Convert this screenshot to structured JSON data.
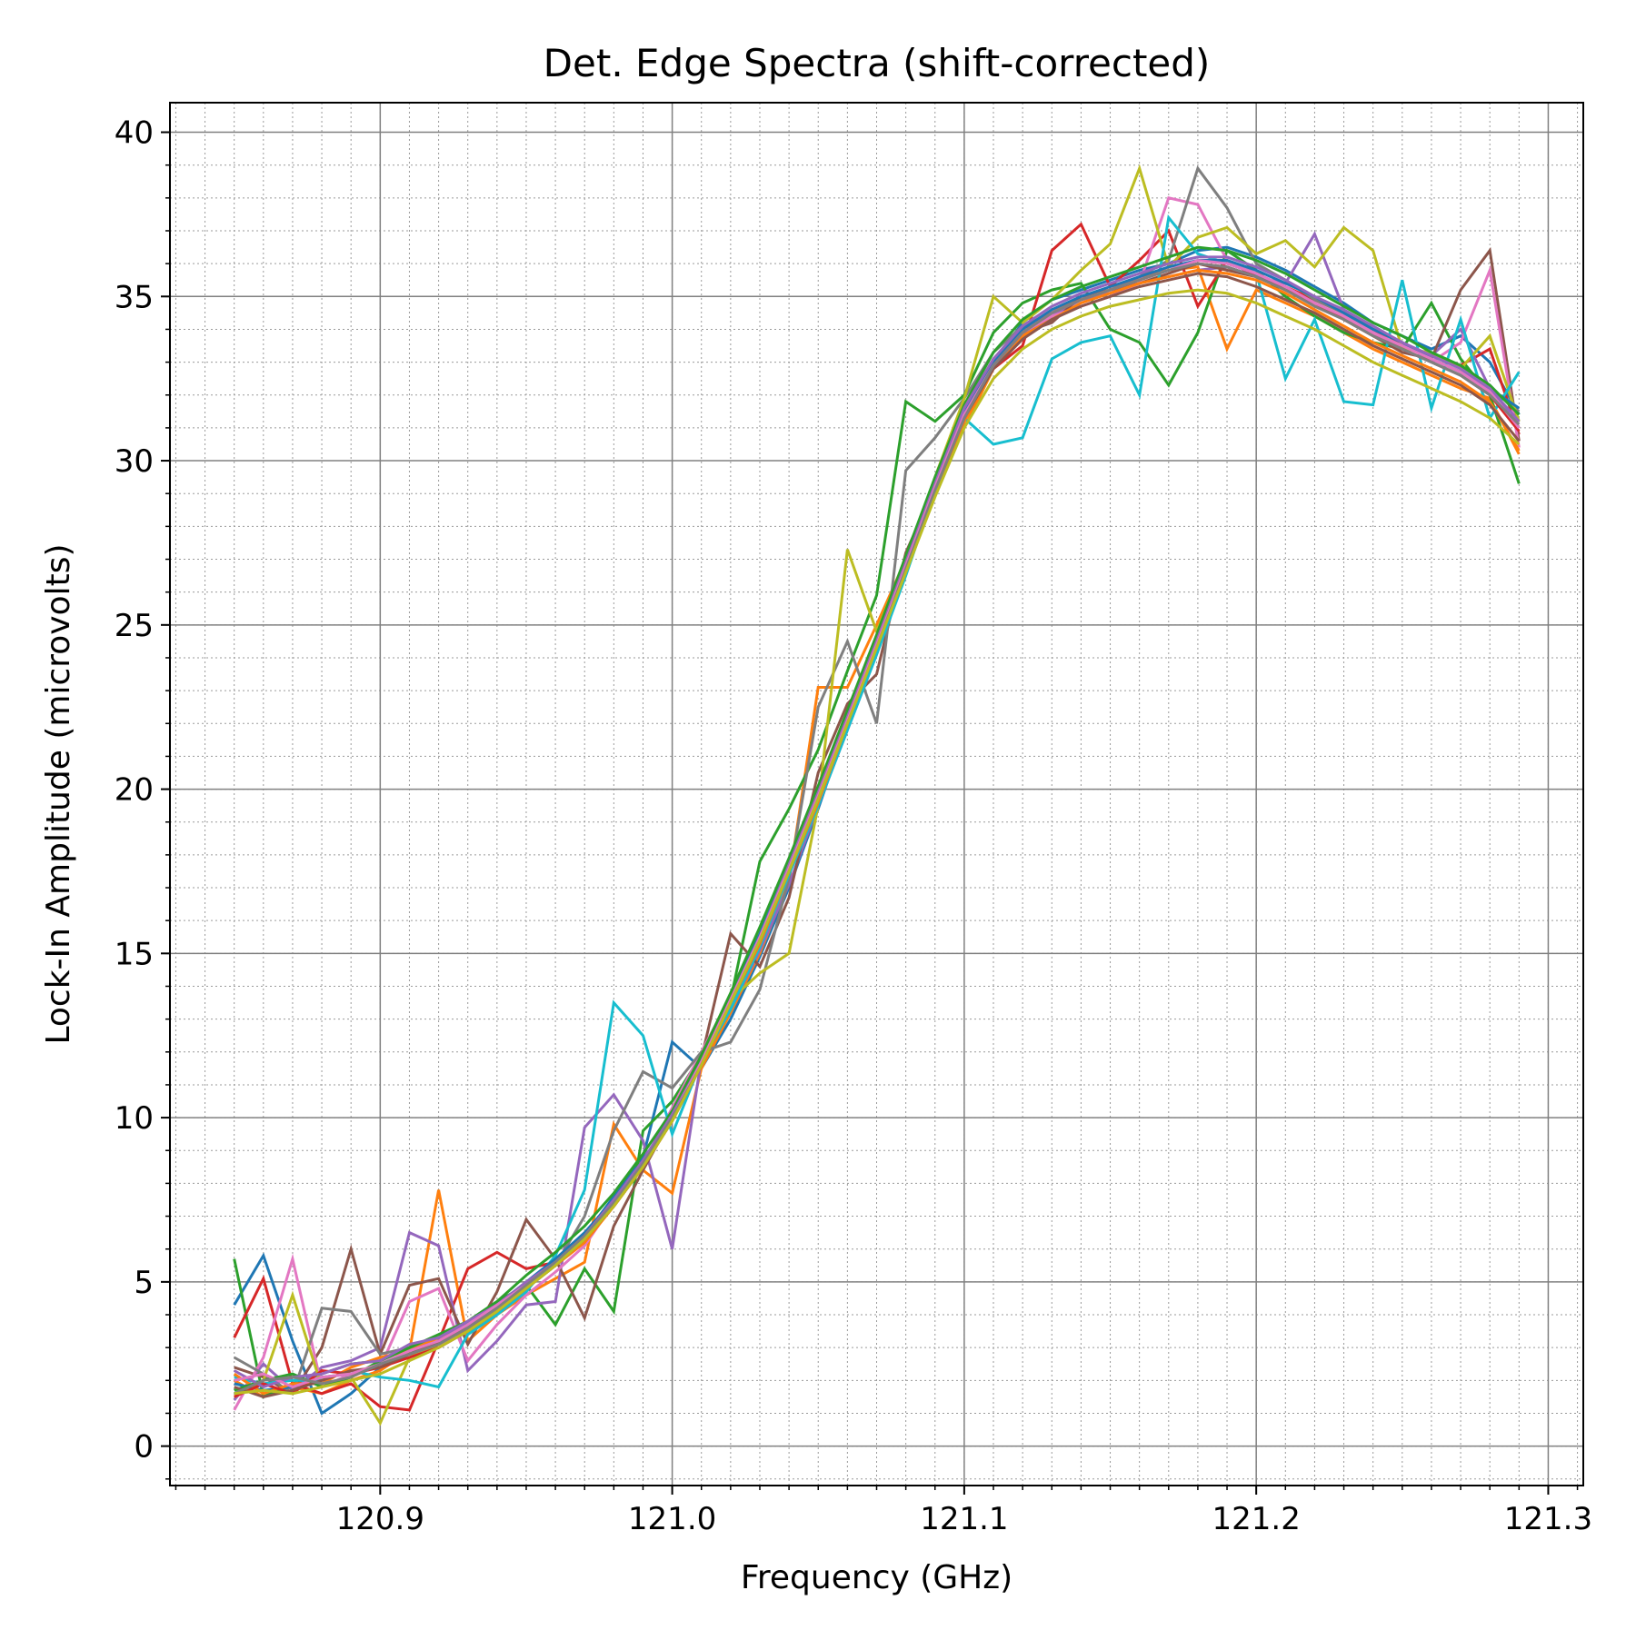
{
  "chart_data": {
    "type": "line",
    "title": "Det. Edge Spectra (shift-corrected)",
    "xlabel": "Frequency (GHz)",
    "ylabel": "Lock-In Amplitude (microvolts)",
    "xlim": [
      120.828,
      121.312
    ],
    "ylim": [
      -1.2,
      40.9
    ],
    "x_ticks": [
      120.9,
      121.0,
      121.1,
      121.2,
      121.3
    ],
    "x_tick_labels": [
      "120.9",
      "121.0",
      "121.1",
      "121.2",
      "121.3"
    ],
    "y_ticks": [
      0,
      5,
      10,
      15,
      20,
      25,
      30,
      35,
      40
    ],
    "y_tick_labels": [
      "0",
      "5",
      "10",
      "15",
      "20",
      "25",
      "30",
      "35",
      "40"
    ],
    "x_minor_step": 0.01,
    "y_minor_step": 1,
    "grid": true,
    "legend": "none",
    "x": [
      120.85,
      120.86,
      120.87,
      120.88,
      120.89,
      120.9,
      120.91,
      120.92,
      120.93,
      120.94,
      120.95,
      120.96,
      120.97,
      120.98,
      120.99,
      121.0,
      121.01,
      121.02,
      121.03,
      121.04,
      121.05,
      121.06,
      121.07,
      121.08,
      121.09,
      121.1,
      121.11,
      121.12,
      121.13,
      121.14,
      121.15,
      121.16,
      121.17,
      121.18,
      121.19,
      121.2,
      121.21,
      121.22,
      121.23,
      121.24,
      121.25,
      121.26,
      121.27,
      121.28,
      121.29
    ],
    "series": [
      {
        "color": "#1f77b4",
        "values": [
          4.3,
          5.8,
          3.2,
          1.0,
          1.6,
          2.4,
          2.8,
          3.1,
          3.6,
          4.2,
          4.9,
          5.6,
          6.4,
          7.6,
          8.8,
          12.3,
          11.5,
          13.0,
          14.9,
          17.0,
          19.4,
          22.0,
          24.6,
          26.8,
          29.0,
          31.2,
          33.0,
          34.2,
          34.9,
          35.2,
          35.5,
          35.8,
          36.0,
          36.4,
          36.5,
          36.2,
          35.8,
          35.3,
          34.8,
          34.2,
          33.8,
          33.4,
          33.8,
          33.0,
          31.4
        ]
      },
      {
        "color": "#ff7f0e",
        "values": [
          2.0,
          1.5,
          1.8,
          1.6,
          2.0,
          2.3,
          2.9,
          7.8,
          3.2,
          4.0,
          4.6,
          5.1,
          5.6,
          9.8,
          8.4,
          7.7,
          11.5,
          13.2,
          15.0,
          17.2,
          23.1,
          23.1,
          25.0,
          27.0,
          29.2,
          31.0,
          32.8,
          33.8,
          34.5,
          35.0,
          35.2,
          35.6,
          35.8,
          35.9,
          33.4,
          35.2,
          34.8,
          34.4,
          33.9,
          33.4,
          33.0,
          32.6,
          32.2,
          31.9,
          30.2
        ]
      },
      {
        "color": "#2ca02c",
        "values": [
          5.7,
          1.5,
          1.9,
          2.2,
          2.5,
          2.6,
          3.0,
          3.3,
          3.8,
          4.4,
          4.9,
          3.7,
          5.4,
          4.1,
          9.6,
          10.5,
          11.9,
          13.6,
          17.8,
          19.4,
          21.2,
          23.6,
          25.9,
          31.8,
          31.2,
          32.0,
          33.9,
          34.8,
          35.2,
          35.4,
          34.0,
          33.6,
          32.3,
          33.9,
          36.4,
          35.8,
          35.0,
          34.4,
          33.9,
          33.6,
          33.4,
          34.8,
          33.1,
          32.0,
          29.3
        ]
      },
      {
        "color": "#d62728",
        "values": [
          3.3,
          5.1,
          1.9,
          1.6,
          1.9,
          1.2,
          1.1,
          3.2,
          5.4,
          5.9,
          5.4,
          5.6,
          6.4,
          7.3,
          8.5,
          10.2,
          12.0,
          13.5,
          15.4,
          17.5,
          19.6,
          22.0,
          24.3,
          26.7,
          29.4,
          31.4,
          32.8,
          33.5,
          36.4,
          37.2,
          35.3,
          36.1,
          37.0,
          34.7,
          36.1,
          35.6,
          35.3,
          34.9,
          34.5,
          34.0,
          33.5,
          33.2,
          32.9,
          33.4,
          30.8
        ]
      },
      {
        "color": "#9467bd",
        "values": [
          1.4,
          2.5,
          1.7,
          2.4,
          2.6,
          3.0,
          6.5,
          6.1,
          2.3,
          3.2,
          4.3,
          4.4,
          9.7,
          10.7,
          9.3,
          6.0,
          11.8,
          13.3,
          15.1,
          17.1,
          19.5,
          21.8,
          24.1,
          26.6,
          29.0,
          31.3,
          32.9,
          33.8,
          34.4,
          34.9,
          35.1,
          35.4,
          35.6,
          35.8,
          35.9,
          35.6,
          35.4,
          36.9,
          34.6,
          34.0,
          33.6,
          33.2,
          34.0,
          32.2,
          31.0
        ]
      },
      {
        "color": "#8c564b",
        "values": [
          2.4,
          2.1,
          1.6,
          3.0,
          6.0,
          2.8,
          4.9,
          5.1,
          3.1,
          4.7,
          6.9,
          5.7,
          3.9,
          6.7,
          8.4,
          10.0,
          11.8,
          15.6,
          14.6,
          16.7,
          20.5,
          22.6,
          23.5,
          27.2,
          29.2,
          31.4,
          32.9,
          33.9,
          34.2,
          35.0,
          35.2,
          35.4,
          35.7,
          36.0,
          35.8,
          35.6,
          35.2,
          34.8,
          34.3,
          33.8,
          33.3,
          33.1,
          35.2,
          36.4,
          30.6
        ]
      },
      {
        "color": "#e377c2",
        "values": [
          1.1,
          2.7,
          5.7,
          1.8,
          2.2,
          2.4,
          4.4,
          4.8,
          2.6,
          3.7,
          4.6,
          5.3,
          6.1,
          7.4,
          8.6,
          10.3,
          12.0,
          13.7,
          15.4,
          17.6,
          19.7,
          22.0,
          24.2,
          26.6,
          29.1,
          31.5,
          33.1,
          33.9,
          34.4,
          34.7,
          35.0,
          35.4,
          38.0,
          37.8,
          36.1,
          35.7,
          35.3,
          34.8,
          34.4,
          33.9,
          33.4,
          33.0,
          33.6,
          35.8,
          30.4
        ]
      },
      {
        "color": "#7f7f7f",
        "values": [
          2.7,
          2.2,
          1.6,
          4.2,
          4.1,
          2.8,
          3.0,
          3.3,
          3.7,
          4.2,
          4.8,
          5.5,
          7.0,
          9.6,
          11.4,
          10.9,
          12.0,
          12.3,
          13.9,
          17.3,
          22.5,
          24.5,
          22.0,
          29.7,
          30.7,
          31.9,
          33.3,
          34.1,
          34.5,
          34.9,
          35.2,
          35.6,
          36.1,
          38.9,
          37.7,
          36.0,
          35.5,
          34.9,
          34.5,
          34.0,
          33.6,
          33.1,
          32.7,
          32.2,
          31.5
        ]
      },
      {
        "color": "#bcbd22",
        "values": [
          1.5,
          2.0,
          4.6,
          1.8,
          2.1,
          0.7,
          2.7,
          3.1,
          3.6,
          4.2,
          4.8,
          5.5,
          6.3,
          7.3,
          8.5,
          10.0,
          11.7,
          13.6,
          14.4,
          15.0,
          19.5,
          27.3,
          24.8,
          27.0,
          29.5,
          31.9,
          35.0,
          34.2,
          34.9,
          35.8,
          36.6,
          38.9,
          35.9,
          36.8,
          37.1,
          36.3,
          36.7,
          35.9,
          37.1,
          36.4,
          33.4,
          33.3,
          32.8,
          33.8,
          31.2
        ]
      },
      {
        "color": "#17becf",
        "values": [
          2.1,
          1.9,
          2.0,
          2.0,
          2.3,
          2.1,
          2.0,
          1.8,
          3.4,
          4.0,
          4.7,
          5.8,
          7.8,
          13.5,
          12.5,
          9.5,
          11.7,
          13.3,
          15.2,
          17.4,
          19.5,
          21.8,
          24.1,
          26.5,
          29.1,
          31.3,
          30.5,
          30.7,
          33.1,
          33.6,
          33.8,
          32.0,
          37.4,
          36.3,
          36.0,
          35.7,
          32.5,
          34.3,
          31.8,
          31.7,
          35.5,
          31.6,
          34.3,
          31.3,
          32.7
        ]
      },
      {
        "color": "#1f77b4",
        "values": [
          1.9,
          1.7,
          1.8,
          2.1,
          2.2,
          2.5,
          2.8,
          3.2,
          3.7,
          4.3,
          5.0,
          5.7,
          6.5,
          7.5,
          8.7,
          10.1,
          11.8,
          13.7,
          15.6,
          17.7,
          19.9,
          22.2,
          24.5,
          26.9,
          29.3,
          31.5,
          33.0,
          34.0,
          34.6,
          35.0,
          35.3,
          35.6,
          35.9,
          36.1,
          36.1,
          35.8,
          35.4,
          35.0,
          34.5,
          34.0,
          33.6,
          33.1,
          32.7,
          32.2,
          31.6
        ]
      },
      {
        "color": "#ff7f0e",
        "values": [
          2.2,
          1.6,
          1.9,
          1.9,
          2.4,
          2.7,
          2.9,
          3.3,
          3.5,
          4.1,
          4.9,
          5.5,
          6.2,
          7.3,
          8.5,
          9.9,
          11.6,
          13.5,
          15.3,
          17.5,
          19.6,
          22.0,
          24.4,
          26.7,
          29.1,
          31.2,
          32.8,
          33.8,
          34.3,
          34.8,
          35.1,
          35.4,
          35.6,
          35.8,
          35.7,
          35.5,
          35.1,
          34.6,
          34.1,
          33.6,
          33.2,
          32.8,
          32.4,
          31.8,
          30.3
        ]
      },
      {
        "color": "#2ca02c",
        "values": [
          1.7,
          2.0,
          2.2,
          1.8,
          2.1,
          2.6,
          3.0,
          3.4,
          3.8,
          4.4,
          5.2,
          5.9,
          6.7,
          7.7,
          8.9,
          10.2,
          11.9,
          13.8,
          15.8,
          17.9,
          20.1,
          22.4,
          24.7,
          27.1,
          29.5,
          31.7,
          33.3,
          34.3,
          34.9,
          35.3,
          35.6,
          35.9,
          36.2,
          36.5,
          36.4,
          36.1,
          35.7,
          35.2,
          34.7,
          34.2,
          33.8,
          33.3,
          32.9,
          32.3,
          31.4
        ]
      },
      {
        "color": "#d62728",
        "values": [
          1.5,
          1.9,
          1.6,
          2.3,
          2.2,
          2.4,
          2.7,
          3.0,
          3.5,
          4.1,
          4.8,
          5.5,
          6.3,
          7.3,
          8.5,
          9.9,
          11.6,
          13.5,
          15.4,
          17.5,
          19.8,
          22.1,
          24.4,
          26.8,
          29.2,
          31.3,
          32.9,
          33.9,
          34.5,
          34.9,
          35.2,
          35.5,
          35.8,
          36.0,
          35.9,
          35.6,
          35.2,
          34.8,
          34.3,
          33.8,
          33.4,
          33.0,
          32.6,
          32.0,
          30.9
        ]
      },
      {
        "color": "#9467bd",
        "values": [
          2.3,
          1.8,
          2.1,
          2.2,
          2.5,
          2.6,
          3.1,
          3.3,
          3.8,
          4.3,
          5.0,
          5.6,
          6.4,
          7.5,
          8.7,
          10.1,
          11.7,
          13.6,
          15.5,
          17.7,
          19.9,
          22.2,
          24.5,
          26.9,
          29.3,
          31.6,
          33.1,
          34.1,
          34.7,
          35.1,
          35.4,
          35.7,
          36.0,
          36.2,
          36.2,
          35.9,
          35.5,
          35.0,
          34.6,
          34.1,
          33.6,
          33.2,
          32.8,
          32.2,
          31.2
        ]
      },
      {
        "color": "#8c564b",
        "values": [
          1.8,
          1.5,
          1.7,
          2.0,
          2.3,
          2.4,
          2.8,
          3.2,
          3.6,
          4.2,
          4.9,
          5.6,
          6.4,
          7.4,
          8.6,
          10.0,
          11.7,
          13.6,
          15.5,
          17.6,
          19.8,
          22.1,
          24.4,
          26.8,
          29.1,
          31.3,
          32.8,
          33.7,
          34.3,
          34.7,
          35.0,
          35.3,
          35.5,
          35.7,
          35.6,
          35.3,
          34.9,
          34.5,
          34.0,
          33.5,
          33.1,
          32.7,
          32.3,
          31.7,
          30.6
        ]
      },
      {
        "color": "#e377c2",
        "values": [
          2.0,
          2.2,
          1.8,
          2.1,
          2.2,
          2.5,
          2.9,
          3.2,
          3.7,
          4.3,
          4.9,
          5.6,
          6.4,
          7.4,
          8.6,
          10.0,
          11.7,
          13.6,
          15.5,
          17.6,
          19.8,
          22.1,
          24.4,
          26.8,
          29.2,
          31.4,
          32.9,
          33.9,
          34.5,
          34.9,
          35.2,
          35.5,
          35.8,
          36.1,
          36.0,
          35.7,
          35.3,
          34.8,
          34.4,
          33.9,
          33.5,
          33.1,
          32.7,
          32.1,
          31.0
        ]
      },
      {
        "color": "#7f7f7f",
        "values": [
          1.6,
          2.0,
          2.1,
          1.9,
          2.1,
          2.5,
          2.8,
          3.1,
          3.6,
          4.2,
          4.9,
          5.6,
          6.4,
          7.4,
          8.6,
          10.0,
          11.6,
          13.5,
          15.4,
          17.5,
          19.7,
          22.0,
          24.3,
          26.7,
          29.1,
          31.3,
          32.9,
          33.9,
          34.5,
          34.9,
          35.2,
          35.5,
          35.8,
          36.0,
          35.9,
          35.6,
          35.2,
          34.7,
          34.3,
          33.8,
          33.4,
          33.0,
          32.6,
          32.0,
          31.1
        ]
      },
      {
        "color": "#bcbd22",
        "values": [
          1.6,
          1.7,
          1.6,
          1.8,
          2.0,
          2.2,
          2.6,
          3.0,
          3.5,
          4.1,
          4.8,
          5.5,
          6.3,
          7.3,
          8.5,
          9.9,
          11.6,
          13.5,
          15.4,
          17.5,
          19.7,
          22.0,
          24.3,
          26.6,
          28.9,
          31.0,
          32.5,
          33.4,
          34.0,
          34.4,
          34.7,
          34.9,
          35.1,
          35.2,
          35.1,
          34.8,
          34.4,
          34.0,
          33.5,
          33.0,
          32.6,
          32.2,
          31.8,
          31.3,
          30.5
        ]
      }
    ]
  }
}
